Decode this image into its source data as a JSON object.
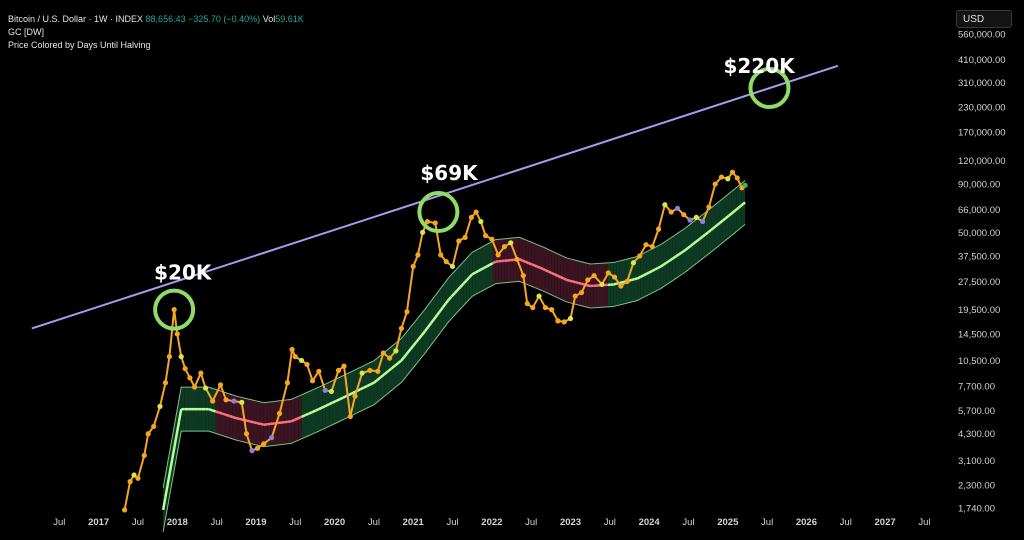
{
  "legend": {
    "symbol": "Bitcoin / U.S. Dollar · 1W · INDEX",
    "price": "88,656.43",
    "change": "−325.70 (−0.40%)",
    "vol_label": "Vol",
    "vol_value": "59.61K",
    "indicator1": "GC [DW]",
    "indicator2": "Price Colored by Days Until Halving"
  },
  "currency_button": "USD",
  "colors": {
    "background": "#000000",
    "price_orange": "#f5a623",
    "price_yellow": "#d6e84a",
    "price_green": "#8fdc6a",
    "price_purple": "#8a7fe0",
    "band_green": "#0e3a24",
    "band_red": "#3a1420",
    "band_line_green": "#b8ff9a",
    "band_line_red": "#ff6f80",
    "trendline": "#a89cf0",
    "circle": "#8fdc6a"
  },
  "chart_data": {
    "type": "line",
    "y_scale": "log",
    "ylim": [
      1600,
      700000
    ],
    "y_ticks": [
      {
        "value": 560000,
        "label": "560,000.00"
      },
      {
        "value": 410000,
        "label": "410,000.00"
      },
      {
        "value": 310000,
        "label": "310,000.00"
      },
      {
        "value": 230000,
        "label": "230,000.00"
      },
      {
        "value": 170000,
        "label": "170,000.00"
      },
      {
        "value": 120000,
        "label": "120,000.00"
      },
      {
        "value": 90000,
        "label": "90,000.00"
      },
      {
        "value": 66000,
        "label": "66,000.00"
      },
      {
        "value": 50000,
        "label": "50,000.00"
      },
      {
        "value": 37500,
        "label": "37,500.00"
      },
      {
        "value": 27500,
        "label": "27,500.00"
      },
      {
        "value": 19500,
        "label": "19,500.00"
      },
      {
        "value": 14500,
        "label": "14,500.00"
      },
      {
        "value": 10500,
        "label": "10,500.00"
      },
      {
        "value": 7700,
        "label": "7,700.00"
      },
      {
        "value": 5700,
        "label": "5,700.00"
      },
      {
        "value": 4300,
        "label": "4,300.00"
      },
      {
        "value": 3100,
        "label": "3,100.00"
      },
      {
        "value": 2300,
        "label": "2,300.00"
      },
      {
        "value": 1740,
        "label": "1,740.00"
      }
    ],
    "x_ticks": [
      {
        "t": 2016.5,
        "label": "Jul",
        "year": false
      },
      {
        "t": 2017.0,
        "label": "2017",
        "year": true
      },
      {
        "t": 2017.5,
        "label": "Jul",
        "year": false
      },
      {
        "t": 2018.0,
        "label": "2018",
        "year": true
      },
      {
        "t": 2018.5,
        "label": "Jul",
        "year": false
      },
      {
        "t": 2019.0,
        "label": "2019",
        "year": true
      },
      {
        "t": 2019.5,
        "label": "Jul",
        "year": false
      },
      {
        "t": 2020.0,
        "label": "2020",
        "year": true
      },
      {
        "t": 2020.5,
        "label": "Jul",
        "year": false
      },
      {
        "t": 2021.0,
        "label": "2021",
        "year": true
      },
      {
        "t": 2021.5,
        "label": "Jul",
        "year": false
      },
      {
        "t": 2022.0,
        "label": "2022",
        "year": true
      },
      {
        "t": 2022.5,
        "label": "Jul",
        "year": false
      },
      {
        "t": 2023.0,
        "label": "2023",
        "year": true
      },
      {
        "t": 2023.5,
        "label": "Jul",
        "year": false
      },
      {
        "t": 2024.0,
        "label": "2024",
        "year": true
      },
      {
        "t": 2024.5,
        "label": "Jul",
        "year": false
      },
      {
        "t": 2025.0,
        "label": "2025",
        "year": true
      },
      {
        "t": 2025.5,
        "label": "Jul",
        "year": false
      },
      {
        "t": 2026.0,
        "label": "2026",
        "year": true
      },
      {
        "t": 2026.5,
        "label": "Jul",
        "year": false
      },
      {
        "t": 2027.0,
        "label": "2027",
        "year": true
      },
      {
        "t": 2027.5,
        "label": "Jul",
        "year": false
      }
    ],
    "xlim": [
      2016.0,
      2027.8
    ],
    "price": [
      [
        2017.33,
        1700
      ],
      [
        2017.4,
        2400
      ],
      [
        2017.45,
        2600
      ],
      [
        2017.5,
        2500
      ],
      [
        2017.58,
        3300
      ],
      [
        2017.63,
        4300
      ],
      [
        2017.7,
        4700
      ],
      [
        2017.78,
        6000
      ],
      [
        2017.85,
        8000
      ],
      [
        2017.9,
        11000
      ],
      [
        2017.96,
        19500
      ],
      [
        2018.0,
        14500
      ],
      [
        2018.05,
        11000
      ],
      [
        2018.1,
        9500
      ],
      [
        2018.16,
        8500
      ],
      [
        2018.22,
        7600
      ],
      [
        2018.3,
        9000
      ],
      [
        2018.36,
        7500
      ],
      [
        2018.45,
        6400
      ],
      [
        2018.55,
        7800
      ],
      [
        2018.62,
        6500
      ],
      [
        2018.72,
        6400
      ],
      [
        2018.82,
        6300
      ],
      [
        2018.88,
        4300
      ],
      [
        2018.95,
        3500
      ],
      [
        2019.02,
        3600
      ],
      [
        2019.1,
        3800
      ],
      [
        2019.2,
        4100
      ],
      [
        2019.3,
        5500
      ],
      [
        2019.4,
        8000
      ],
      [
        2019.46,
        12000
      ],
      [
        2019.5,
        11000
      ],
      [
        2019.58,
        10500
      ],
      [
        2019.65,
        10000
      ],
      [
        2019.72,
        8200
      ],
      [
        2019.8,
        9200
      ],
      [
        2019.88,
        7300
      ],
      [
        2019.96,
        7200
      ],
      [
        2020.05,
        9300
      ],
      [
        2020.12,
        9800
      ],
      [
        2020.2,
        5300
      ],
      [
        2020.26,
        6800
      ],
      [
        2020.35,
        9000
      ],
      [
        2020.45,
        9300
      ],
      [
        2020.55,
        9200
      ],
      [
        2020.62,
        11500
      ],
      [
        2020.7,
        10800
      ],
      [
        2020.78,
        11800
      ],
      [
        2020.85,
        15500
      ],
      [
        2020.92,
        19000
      ],
      [
        2021.0,
        33000
      ],
      [
        2021.06,
        38000
      ],
      [
        2021.12,
        50000
      ],
      [
        2021.18,
        57000
      ],
      [
        2021.28,
        56000
      ],
      [
        2021.35,
        38000
      ],
      [
        2021.42,
        35000
      ],
      [
        2021.5,
        33000
      ],
      [
        2021.58,
        45000
      ],
      [
        2021.66,
        47000
      ],
      [
        2021.74,
        60000
      ],
      [
        2021.8,
        64000
      ],
      [
        2021.86,
        57000
      ],
      [
        2021.92,
        48000
      ],
      [
        2022.0,
        46000
      ],
      [
        2022.08,
        38000
      ],
      [
        2022.16,
        42000
      ],
      [
        2022.24,
        44000
      ],
      [
        2022.32,
        36000
      ],
      [
        2022.4,
        29500
      ],
      [
        2022.45,
        21000
      ],
      [
        2022.52,
        20000
      ],
      [
        2022.6,
        23000
      ],
      [
        2022.68,
        20000
      ],
      [
        2022.76,
        19500
      ],
      [
        2022.84,
        17000
      ],
      [
        2022.92,
        16800
      ],
      [
        2023.0,
        17500
      ],
      [
        2023.06,
        23000
      ],
      [
        2023.14,
        24000
      ],
      [
        2023.22,
        28000
      ],
      [
        2023.3,
        29500
      ],
      [
        2023.4,
        26500
      ],
      [
        2023.48,
        30500
      ],
      [
        2023.56,
        29000
      ],
      [
        2023.64,
        26000
      ],
      [
        2023.72,
        27500
      ],
      [
        2023.8,
        34500
      ],
      [
        2023.88,
        37500
      ],
      [
        2023.96,
        43000
      ],
      [
        2024.04,
        42000
      ],
      [
        2024.12,
        52000
      ],
      [
        2024.2,
        70000
      ],
      [
        2024.28,
        64000
      ],
      [
        2024.36,
        67000
      ],
      [
        2024.44,
        62000
      ],
      [
        2024.52,
        58000
      ],
      [
        2024.6,
        60000
      ],
      [
        2024.68,
        57000
      ],
      [
        2024.76,
        68000
      ],
      [
        2024.84,
        90000
      ],
      [
        2024.92,
        98000
      ],
      [
        2025.0,
        96000
      ],
      [
        2025.06,
        104000
      ],
      [
        2025.12,
        97000
      ],
      [
        2025.18,
        86000
      ],
      [
        2025.22,
        88656
      ]
    ],
    "band_center": [
      [
        2018.05,
        5800
      ],
      [
        2018.4,
        5800
      ],
      [
        2018.75,
        5200
      ],
      [
        2019.1,
        4800
      ],
      [
        2019.45,
        5000
      ],
      [
        2019.8,
        5800
      ],
      [
        2020.15,
        6800
      ],
      [
        2020.5,
        8000
      ],
      [
        2020.85,
        10500
      ],
      [
        2021.15,
        15000
      ],
      [
        2021.45,
        22000
      ],
      [
        2021.75,
        30000
      ],
      [
        2022.05,
        35000
      ],
      [
        2022.35,
        36000
      ],
      [
        2022.65,
        32000
      ],
      [
        2022.95,
        28000
      ],
      [
        2023.25,
        26000
      ],
      [
        2023.55,
        26500
      ],
      [
        2023.85,
        28500
      ],
      [
        2024.15,
        33000
      ],
      [
        2024.45,
        40000
      ],
      [
        2024.75,
        50000
      ],
      [
        2025.05,
        63000
      ],
      [
        2025.22,
        72000
      ]
    ],
    "band_start": [
      2017.82,
      1700
    ],
    "red_phases": [
      [
        2018.45,
        2019.55
      ],
      [
        2022.0,
        2023.45
      ]
    ],
    "trendline": [
      [
        2016.15,
        15500
      ],
      [
        2026.4,
        380000
      ]
    ],
    "annotations": [
      {
        "label": "$20K",
        "t": 2017.96,
        "price": 19500,
        "text_dx": -8,
        "text_dy": -30
      },
      {
        "label": "$69K",
        "t": 2021.32,
        "price": 64000,
        "text_dx": -6,
        "text_dy": -32
      },
      {
        "label": "$220K",
        "t": 2025.53,
        "price": 290000,
        "text_dx": -34,
        "text_dy": -15
      }
    ]
  }
}
